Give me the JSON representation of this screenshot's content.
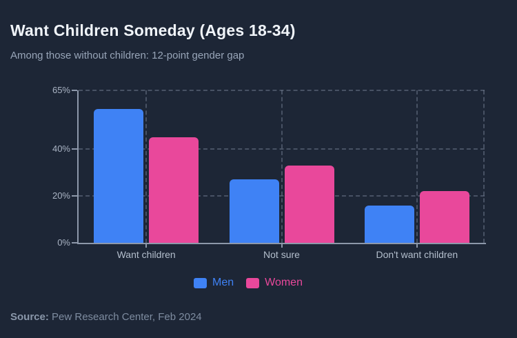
{
  "header": {
    "title": "Want Children Someday (Ages 18-34)",
    "subtitle": "Among those without children: 12-point gender gap"
  },
  "chart_data": {
    "type": "bar",
    "title": "Want Children Someday (Ages 18-34)",
    "categories": [
      "Want children",
      "Not sure",
      "Don't want children"
    ],
    "series": [
      {
        "name": "Men",
        "color": "#3f82f5",
        "values": [
          57,
          27,
          16
        ]
      },
      {
        "name": "Women",
        "color": "#e9489b",
        "values": [
          45,
          33,
          22
        ]
      }
    ],
    "xlabel": "",
    "ylabel": "",
    "ylim": [
      0,
      65
    ],
    "yticks": [
      {
        "value": 0,
        "label": "0%"
      },
      {
        "value": 20,
        "label": "20%"
      },
      {
        "value": 40,
        "label": "40%"
      },
      {
        "value": 65,
        "label": "65%"
      }
    ],
    "grid": "dashed horizontal and vertical at category centers",
    "legend_position": "bottom"
  },
  "footer": {
    "source_label": "Source:",
    "source_text": " Pew Research Center, Feb 2024"
  }
}
